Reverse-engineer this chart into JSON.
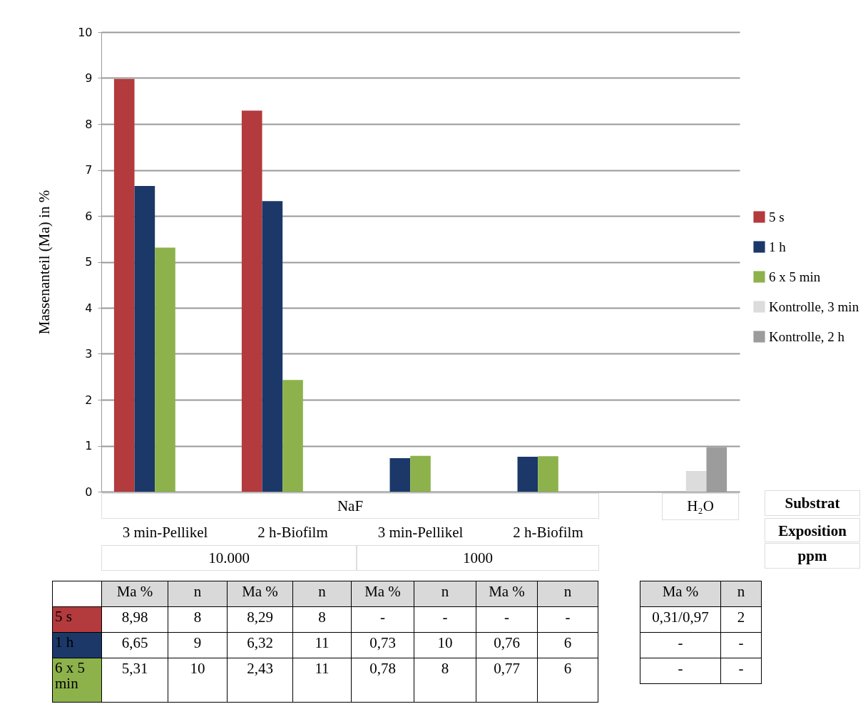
{
  "chart_data": {
    "type": "bar",
    "ylabel": "Massenanteil (Ma) in %",
    "categories": [
      "3 min-Pellikel",
      "2 h-Biofilm",
      "3 min-Pellikel",
      "2 h-Biofilm",
      null
    ],
    "series": [
      {
        "name": "5 s",
        "color": "#b33a3d",
        "values": [
          8.98,
          8.29,
          null,
          null,
          null
        ]
      },
      {
        "name": "1 h",
        "color": "#1b3869",
        "values": [
          6.65,
          6.32,
          0.73,
          0.76,
          null
        ]
      },
      {
        "name": "6 x 5 min",
        "color": "#8db24c",
        "values": [
          5.31,
          2.43,
          0.78,
          0.77,
          null
        ]
      },
      {
        "name": "Kontrolle, 3 min",
        "color": "#dcdcdc",
        "values": [
          null,
          null,
          null,
          null,
          0.45
        ]
      },
      {
        "name": "Kontrolle, 2 h",
        "color": "#9c9c9c",
        "values": [
          null,
          null,
          null,
          null,
          0.97
        ]
      }
    ],
    "ylim": [
      0,
      10
    ],
    "yticks": [
      0,
      1,
      2,
      3,
      4,
      5,
      6,
      7,
      8,
      9,
      10
    ],
    "grid": "y",
    "legend": "right",
    "annotations": [
      "NaF",
      "H₂O",
      "10.000",
      "1000",
      "Substrat",
      "Exposition",
      "ppm",
      "Ma %",
      "n",
      "Ma %",
      "n",
      "Ma %",
      "n",
      "Ma %",
      "n",
      "Ma %",
      "n",
      "8,98",
      "8",
      "8,29",
      "8",
      "-",
      "-",
      "-",
      "-",
      "0,31/0,97",
      "2",
      "6,65",
      "9",
      "6,32",
      "11",
      "0,73",
      "10",
      "0,76",
      "6",
      "-",
      "-",
      "5,31",
      "10",
      "2,43",
      "11",
      "0,78",
      "8",
      "0,77",
      "6",
      "-",
      "-"
    ]
  }
}
